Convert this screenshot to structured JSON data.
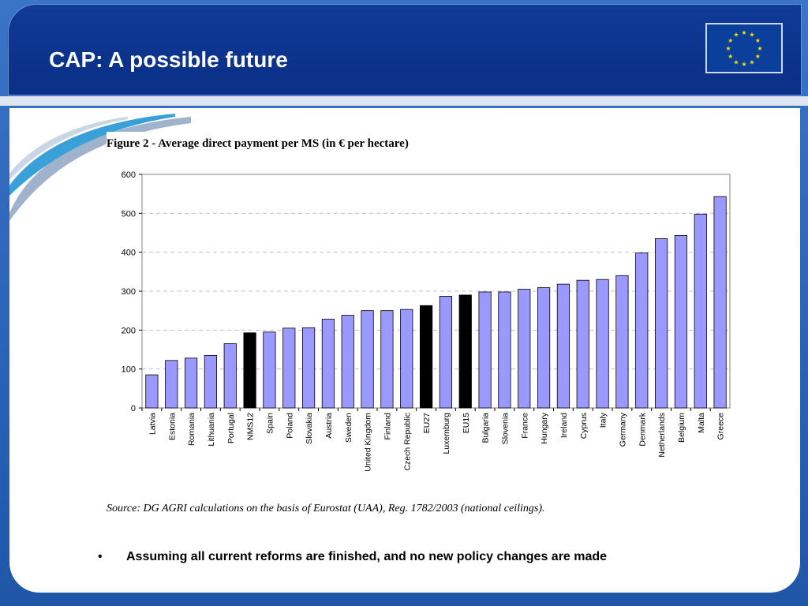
{
  "slide": {
    "title": "CAP:  A possible future",
    "bullet": "Assuming all current reforms are finished, and no new policy changes are made"
  },
  "figure": {
    "title": "Figure 2 - Average direct payment per MS (in € per hectare)",
    "source": "Source: DG AGRI calculations on the basis of Eurostat (UAA), Reg. 1782/2003 (national ceilings)."
  },
  "colors": {
    "bar": "#9999ff",
    "highlight_bar": "#000000",
    "header": "#0f3a96",
    "slide_frame": "#2f66b8"
  },
  "icons": {
    "flag": "eu-flag-icon"
  },
  "chart_data": {
    "type": "bar",
    "categories": [
      "Latvia",
      "Estonia",
      "Romania",
      "Lithuania",
      "Portugal",
      "NMS12",
      "Spain",
      "Poland",
      "Slovakia",
      "Austria",
      "Sweden",
      "United Kingdom",
      "Finland",
      "Czech Republic",
      "EU27",
      "Luxemburg",
      "EU15",
      "Bulgaria",
      "Slovenia",
      "France",
      "Hungary",
      "Ireland",
      "Cyprus",
      "Italy",
      "Germany",
      "Denmark",
      "Netherlands",
      "Belgium",
      "Malta",
      "Greece"
    ],
    "values": [
      85,
      122,
      128,
      135,
      165,
      193,
      195,
      205,
      206,
      228,
      238,
      250,
      250,
      253,
      263,
      287,
      290,
      298,
      298,
      305,
      309,
      318,
      328,
      330,
      340,
      398,
      435,
      443,
      498,
      543
    ],
    "highlighted": [
      "NMS12",
      "EU27",
      "EU15"
    ],
    "ylim": [
      0,
      600
    ],
    "yticks": [
      0,
      100,
      200,
      300,
      400,
      500,
      600
    ],
    "grid": true,
    "xlabel": "",
    "ylabel": ""
  }
}
